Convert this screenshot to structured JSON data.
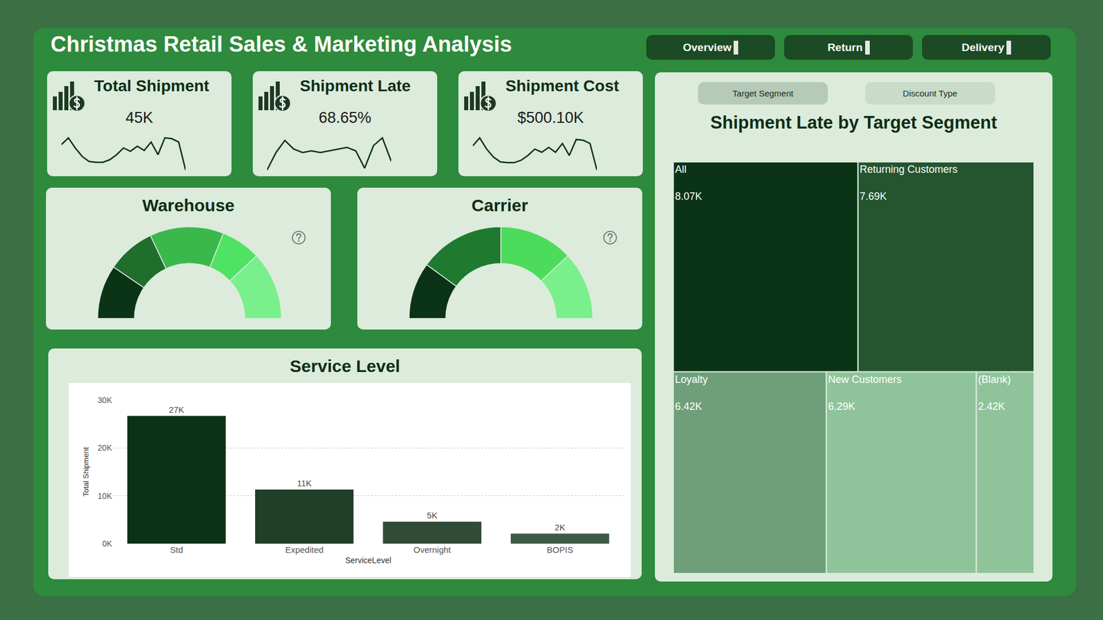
{
  "header": {
    "title": "Christmas Retail Sales & Marketing Analysis",
    "nav": [
      "Overview",
      "Return",
      "Delivery"
    ]
  },
  "kpis": [
    {
      "title": "Total Shipment",
      "value": "45K",
      "trend": [
        32,
        40,
        28,
        18,
        12,
        11,
        11,
        14,
        20,
        28,
        24,
        30,
        25,
        35,
        20,
        40,
        39,
        35,
        2
      ]
    },
    {
      "title": "Shipment Late",
      "value": "68.65%",
      "trend": [
        0,
        20,
        34,
        24,
        20,
        22,
        20,
        22,
        24,
        26,
        22,
        2,
        28,
        37,
        10
      ]
    },
    {
      "title": "Shipment Cost",
      "value": "$500.10K",
      "trend": [
        30,
        40,
        26,
        16,
        10,
        9,
        9,
        12,
        18,
        26,
        22,
        28,
        22,
        33,
        18,
        38,
        37,
        33,
        0
      ]
    }
  ],
  "tabs": [
    "Target Segment",
    "Discount Type"
  ],
  "chart_data": [
    {
      "type": "pie",
      "title": "Warehouse",
      "values": [
        19,
        17,
        26,
        14,
        24
      ],
      "colors": [
        "#0b3315",
        "#1f6e2c",
        "#3bb84c",
        "#4fe263",
        "#79f08b"
      ]
    },
    {
      "type": "pie",
      "title": "Carrier",
      "values": [
        20,
        30,
        26,
        24
      ],
      "colors": [
        "#0b3315",
        "#1f7a30",
        "#4ddb5c",
        "#79f08b"
      ]
    },
    {
      "type": "bar",
      "title": "Service Level",
      "xlabel": "ServiceLevel",
      "ylabel": "Total Shipment",
      "categories": [
        "Std",
        "Expedited",
        "Overnight",
        "BOPIS"
      ],
      "values": [
        26700,
        11300,
        4600,
        2100
      ],
      "value_labels": [
        "27K",
        "11K",
        "5K",
        "2K"
      ],
      "colors": [
        "#0c3215",
        "#1f3f27",
        "#304b37",
        "#3f5b46"
      ],
      "ylim": [
        0,
        30000
      ],
      "yticks": [
        {
          "value": 0,
          "label": "0K"
        },
        {
          "value": 10000,
          "label": "10K"
        },
        {
          "value": 20000,
          "label": "20K"
        },
        {
          "value": 30000,
          "label": "30K"
        }
      ],
      "grid": true,
      "data_labels": true
    },
    {
      "type": "treemap",
      "title": "Shipment Late by Target Segment",
      "categories": [
        "All",
        "Returning Customers",
        "Loyalty",
        "New Customers",
        "(Blank)"
      ],
      "values": [
        8070,
        7690,
        6420,
        6290,
        2420
      ],
      "value_labels": [
        "8.07K",
        "7.69K",
        "6.42K",
        "6.29K",
        "2.42K"
      ],
      "colors": [
        "#0b3315",
        "#24552f",
        "#6e9f78",
        "#8fc49a",
        "#8fc49a"
      ],
      "data_labels": true
    }
  ]
}
